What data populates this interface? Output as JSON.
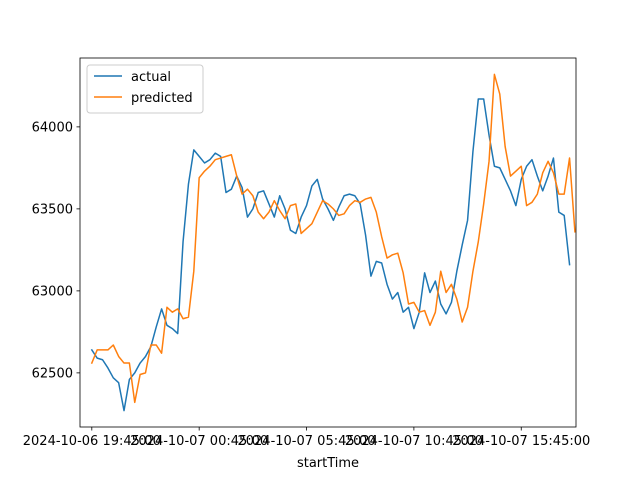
{
  "chart_data": {
    "type": "line",
    "xlabel": "startTime",
    "ylabel": "",
    "grid": false,
    "legend_position": "top-left",
    "xlim": [
      -1.1,
      45.1
    ],
    "ylim": [
      62170,
      64420
    ],
    "x_ticks": [
      {
        "x": 0,
        "label": "2024-10-06 19:45:00"
      },
      {
        "x": 10,
        "label": "2024-10-07 00:45:00"
      },
      {
        "x": 20,
        "label": "2024-10-07 05:45:00"
      },
      {
        "x": 30,
        "label": "2024-10-07 10:45:00"
      },
      {
        "x": 40,
        "label": "2024-10-07 15:45:00"
      }
    ],
    "y_ticks": [
      62500,
      63000,
      63500,
      64000
    ],
    "series": [
      {
        "name": "actual",
        "color": "#1f77b4",
        "x": [
          0,
          0.5,
          1,
          1.5,
          2,
          2.5,
          3,
          3.5,
          4,
          4.5,
          5,
          5.5,
          6,
          6.5,
          7,
          7.5,
          8,
          8.5,
          9,
          9.5,
          10,
          10.5,
          11,
          11.5,
          12,
          12.5,
          13,
          13.5,
          14,
          14.5,
          15,
          15.5,
          16,
          16.5,
          17,
          17.5,
          18,
          18.5,
          19,
          19.5,
          20,
          20.5,
          21,
          21.5,
          22,
          22.5,
          23,
          23.5,
          24,
          24.5,
          25,
          25.5,
          26,
          26.5,
          27,
          27.5,
          28,
          28.5,
          29,
          29.5,
          30,
          30.5,
          31,
          31.5,
          32,
          32.5,
          33,
          33.5,
          34,
          34.5,
          35,
          35.5,
          36,
          36.5,
          37,
          37.5,
          38,
          38.5,
          39,
          39.5,
          40,
          40.5,
          41,
          41.5,
          42,
          42.5,
          43,
          43.5,
          44,
          44.5,
          45
        ],
        "values": [
          62640,
          62590,
          62580,
          62530,
          62470,
          62440,
          62270,
          62460,
          62500,
          62560,
          62600,
          62660,
          62780,
          62890,
          62790,
          62770,
          62740,
          63300,
          63650,
          63860,
          63820,
          63780,
          63800,
          63840,
          63820,
          63600,
          63620,
          63700,
          63630,
          63450,
          63500,
          63600,
          63610,
          63530,
          63450,
          63580,
          63500,
          63370,
          63350,
          63450,
          63520,
          63640,
          63680,
          63560,
          63500,
          63430,
          63510,
          63580,
          63590,
          63580,
          63530,
          63340,
          63090,
          63180,
          63170,
          63040,
          62950,
          62990,
          62870,
          62900,
          62770,
          62870,
          63110,
          62990,
          63060,
          62920,
          62860,
          62930,
          63120,
          63280,
          63430,
          63850,
          64170,
          64170,
          63950,
          63760,
          63750,
          63680,
          63610,
          63520,
          63680,
          63760,
          63800,
          63700,
          63610,
          63700,
          63810,
          63480,
          63460,
          63160,
          null
        ]
      },
      {
        "name": "predicted",
        "color": "#ff7f0e",
        "x": [
          0,
          0.5,
          1,
          1.5,
          2,
          2.5,
          3,
          3.5,
          4,
          4.5,
          5,
          5.5,
          6,
          6.5,
          7,
          7.5,
          8,
          8.5,
          9,
          9.5,
          10,
          10.5,
          11,
          11.5,
          12,
          12.5,
          13,
          13.5,
          14,
          14.5,
          15,
          15.5,
          16,
          16.5,
          17,
          17.5,
          18,
          18.5,
          19,
          19.5,
          20,
          20.5,
          21,
          21.5,
          22,
          22.5,
          23,
          23.5,
          24,
          24.5,
          25,
          25.5,
          26,
          26.5,
          27,
          27.5,
          28,
          28.5,
          29,
          29.5,
          30,
          30.5,
          31,
          31.5,
          32,
          32.5,
          33,
          33.5,
          34,
          34.5,
          35,
          35.5,
          36,
          36.5,
          37,
          37.5,
          38,
          38.5,
          39,
          39.5,
          40,
          40.5,
          41,
          41.5,
          42,
          42.5,
          43,
          43.5,
          44,
          44.5,
          45
        ],
        "values": [
          62560,
          62640,
          62640,
          62640,
          62670,
          62600,
          62560,
          62560,
          62320,
          62490,
          62500,
          62670,
          62670,
          62620,
          62900,
          62870,
          62890,
          62830,
          62840,
          63120,
          63690,
          63730,
          63760,
          63800,
          63810,
          63820,
          63830,
          63700,
          63590,
          63620,
          63580,
          63480,
          63440,
          63480,
          63550,
          63490,
          63440,
          63520,
          63530,
          63350,
          63380,
          63410,
          63480,
          63550,
          63530,
          63500,
          63460,
          63470,
          63520,
          63550,
          63540,
          63560,
          63570,
          63480,
          63330,
          63200,
          63220,
          63230,
          63110,
          62920,
          62930,
          62870,
          62880,
          62790,
          62870,
          63120,
          62990,
          63040,
          62950,
          62810,
          62900,
          63120,
          63300,
          63530,
          63790,
          64320,
          64200,
          63880,
          63700,
          63730,
          63760,
          63520,
          63540,
          63590,
          63720,
          63790,
          63720,
          63590,
          63590,
          63810,
          63360
        ]
      }
    ]
  }
}
